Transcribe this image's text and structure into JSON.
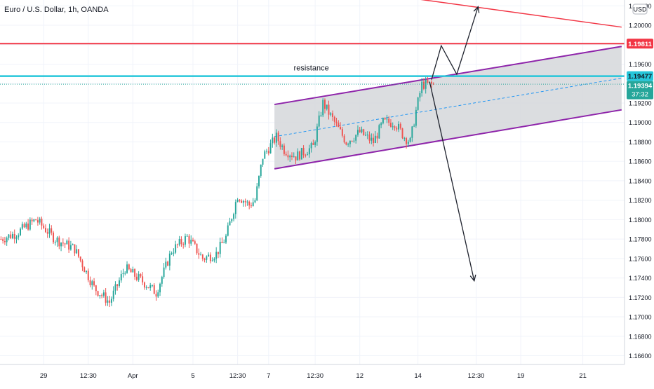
{
  "header": {
    "symbol_title": "Euro / U.S. Dollar, 1h, OANDA",
    "currency_badge": "USD"
  },
  "annotations": {
    "resistance_label": "resistance"
  },
  "price_tags": {
    "red_level": "1.19811",
    "cyan_level": "1.19477",
    "last_price": "1.19394",
    "countdown": "37:32"
  },
  "colors": {
    "up": "#26a69a",
    "down": "#ef5350",
    "red_line": "#f23645",
    "cyan_line": "#26c6da",
    "channel": "#8e24aa",
    "channel_fill": "#d5d7db",
    "last_price_tag": "#26a69a",
    "arrows": "#1e222d"
  },
  "chart_data": {
    "type": "candlestick",
    "y_axis": {
      "range": [
        1.1651,
        1.2026
      ],
      "tick_labels": [
        "1.20200",
        "1.20000",
        "1.19800",
        "1.19600",
        "1.19400",
        "1.19200",
        "1.19000",
        "1.18800",
        "1.18600",
        "1.18400",
        "1.18200",
        "1.18000",
        "1.17800",
        "1.17600",
        "1.17400",
        "1.17200",
        "1.17000",
        "1.16800",
        "1.16600"
      ],
      "ticks": [
        1.202,
        1.2,
        1.198,
        1.196,
        1.194,
        1.192,
        1.19,
        1.188,
        1.186,
        1.184,
        1.182,
        1.18,
        1.178,
        1.176,
        1.174,
        1.172,
        1.17,
        1.168,
        1.166
      ]
    },
    "x_axis": {
      "tick_labels": [
        "29",
        "12:30",
        "Apr",
        "5",
        "12:30",
        "7",
        "12:30",
        "12",
        "14",
        "12:30",
        "19",
        "21"
      ],
      "tick_index": [
        22,
        45,
        68,
        99,
        122,
        138,
        162,
        185,
        215,
        245,
        268,
        300
      ]
    },
    "bars_visible": 224,
    "future_bars": 98,
    "price_path": [
      [
        0,
        1.178
      ],
      [
        8,
        1.1786
      ],
      [
        18,
        1.18
      ],
      [
        28,
        1.178
      ],
      [
        38,
        1.177
      ],
      [
        48,
        1.173
      ],
      [
        56,
        1.1715
      ],
      [
        64,
        1.175
      ],
      [
        72,
        1.1738
      ],
      [
        80,
        1.1725
      ],
      [
        88,
        1.1768
      ],
      [
        96,
        1.1782
      ],
      [
        104,
        1.176
      ],
      [
        111,
        1.1765
      ],
      [
        116,
        1.1782
      ],
      [
        122,
        1.1825
      ],
      [
        128,
        1.1815
      ],
      [
        131,
        1.182
      ],
      [
        135,
        1.1865
      ],
      [
        142,
        1.1885
      ],
      [
        146,
        1.1872
      ],
      [
        152,
        1.1865
      ],
      [
        161,
        1.1875
      ],
      [
        166,
        1.192
      ],
      [
        172,
        1.19
      ],
      [
        178,
        1.188
      ],
      [
        185,
        1.189
      ],
      [
        192,
        1.188
      ],
      [
        197,
        1.19
      ],
      [
        203,
        1.19
      ],
      [
        208,
        1.1885
      ],
      [
        211,
        1.188
      ],
      [
        214,
        1.1912
      ],
      [
        217,
        1.1939
      ]
    ],
    "last_close": 1.19394,
    "horizontal_levels": [
      {
        "name": "red",
        "price": 1.19811
      },
      {
        "name": "resistance",
        "price": 1.19477
      },
      {
        "name": "last-price",
        "price": 1.19394
      }
    ],
    "trend_lines": [
      {
        "name": "descending-red",
        "points": [
          [
            160,
            1.2042
          ],
          [
            320,
            1.19981
          ]
        ]
      }
    ],
    "channel": {
      "upper": [
        [
          141,
          1.19185
        ],
        [
          320,
          1.19782
        ]
      ],
      "lower": [
        [
          141,
          1.18523
        ],
        [
          320,
          1.1913
        ]
      ],
      "mid": [
        [
          141,
          1.18854
        ],
        [
          320,
          1.19456
        ]
      ]
    },
    "projection_arrows": [
      {
        "name": "breakout-up",
        "points": [
          [
            222,
            1.1944
          ],
          [
            227,
            1.1979
          ],
          [
            235,
            1.19496
          ],
          [
            246,
            1.20191
          ]
        ]
      },
      {
        "name": "breakdown-down",
        "points": [
          [
            221,
            1.1942
          ],
          [
            244,
            1.17371
          ]
        ]
      }
    ]
  }
}
